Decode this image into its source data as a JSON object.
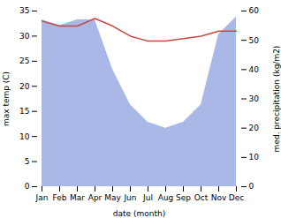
{
  "chart_data": {
    "type": "line",
    "xlabel": "date (month)",
    "ylabel": "max temp (C)",
    "y2label": "med. precipitation (kg/m2)",
    "categories": [
      "Jan",
      "Feb",
      "Mar",
      "Apr",
      "May",
      "Jun",
      "Jul",
      "Aug",
      "Sep",
      "Oct",
      "Nov",
      "Dec"
    ],
    "series": [
      {
        "type": "area",
        "axis": "y2",
        "color": "#aab8e8",
        "values": [
          57,
          55,
          57,
          57,
          40,
          28,
          22,
          20,
          22,
          28,
          52,
          58
        ]
      },
      {
        "type": "line",
        "color": "#cc4444",
        "values": [
          33.0,
          32.0,
          32.0,
          33.5,
          32.0,
          30.0,
          29.0,
          29.0,
          29.5,
          30.0,
          31.0,
          31.0
        ]
      }
    ],
    "ylim": [
      0,
      35
    ],
    "yticks": [
      0,
      5,
      10,
      15,
      20,
      25,
      30,
      35
    ],
    "y2lim": [
      0,
      60
    ],
    "y2ticks": [
      0,
      10,
      20,
      30,
      40,
      50,
      60
    ],
    "grid": false
  }
}
